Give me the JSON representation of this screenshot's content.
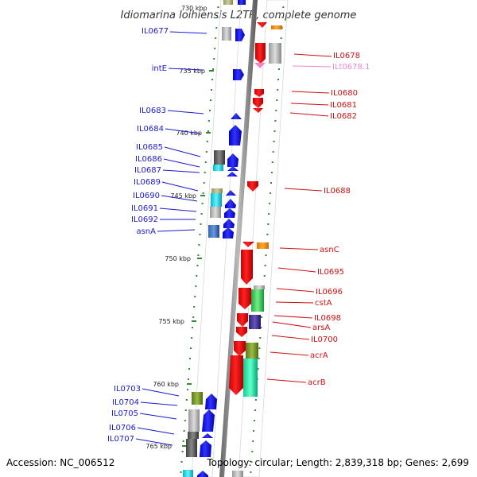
{
  "header": {
    "title": "Idiomarina loihiensis L2TR, complete genome"
  },
  "footer": {
    "accession": "Accession: NC_006512",
    "topology": "Topology: circular; Length: 2,839,318 bp; Genes: 2,699"
  },
  "colors": {
    "forward_label": "#1a1acc",
    "reverse_label": "#cc1111",
    "rna_label": "#ee88cc",
    "backbone": "#888888",
    "tick_dot": "#2e8b2e"
  },
  "scale_ticks": [
    "730 kbp",
    "735 kbp",
    "740 kbp",
    "745 kbp",
    "750 kbp",
    "755 kbp",
    "760 kbp",
    "765 kbp"
  ],
  "forward_labels": [
    "IL0677",
    "intE",
    "IL0683",
    "IL0684",
    "IL0685",
    "IL0686",
    "IL0687",
    "IL0689",
    "IL0690",
    "IL0691",
    "IL0692",
    "asnA",
    "IL0703",
    "IL0704",
    "IL0705",
    "IL0706",
    "IL0707"
  ],
  "reverse_labels": [
    "IL0678",
    "ILt0678.1",
    "IL0680",
    "IL0681",
    "IL0682",
    "IL0688",
    "asnC",
    "IL0695",
    "IL0696",
    "cstA",
    "IL0698",
    "arsA",
    "IL0700",
    "acrA",
    "acrB"
  ]
}
